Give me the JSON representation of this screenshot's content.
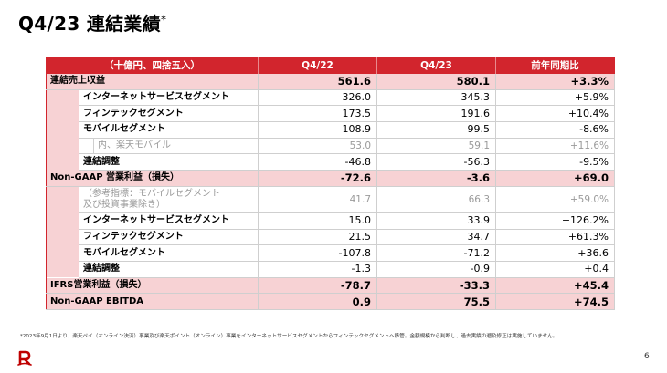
{
  "title": {
    "text": "Q4/23 連結業績",
    "mark": "*"
  },
  "table": {
    "headers": [
      "（十億円、四捨五入）",
      "Q4/22",
      "Q4/23",
      "前年同期比"
    ],
    "rows": [
      {
        "label": "連結売上収益",
        "q422": "561.6",
        "q423": "580.1",
        "yoy": "+3.3%",
        "kind": "major"
      },
      {
        "label": "インターネットサービスセグメント",
        "q422": "326.0",
        "q423": "345.3",
        "yoy": "+5.9%",
        "kind": "sub"
      },
      {
        "label": "フィンテックセグメント",
        "q422": "173.5",
        "q423": "191.6",
        "yoy": "+10.4%",
        "kind": "sub"
      },
      {
        "label": "モバイルセグメント",
        "q422": "108.9",
        "q423": "99.5",
        "yoy": "-8.6%",
        "kind": "sub"
      },
      {
        "label": "内、楽天モバイル",
        "q422": "53.0",
        "q423": "59.1",
        "yoy": "+11.6%",
        "kind": "gray2"
      },
      {
        "label": "連結調整",
        "q422": "-46.8",
        "q423": "-56.3",
        "yoy": "-9.5%",
        "kind": "sub"
      },
      {
        "label": "Non-GAAP 営業利益（損失）",
        "q422": "-72.6",
        "q423": "-3.6",
        "yoy": "+69.0",
        "kind": "major"
      },
      {
        "label": "（参考指標：モバイルセグメント\n及び投資事業除き）",
        "q422": "41.7",
        "q423": "66.3",
        "yoy": "+59.0%",
        "kind": "gray"
      },
      {
        "label": "インターネットサービスセグメント",
        "q422": "15.0",
        "q423": "33.9",
        "yoy": "+126.2%",
        "kind": "sub"
      },
      {
        "label": "フィンテックセグメント",
        "q422": "21.5",
        "q423": "34.7",
        "yoy": "+61.3%",
        "kind": "sub"
      },
      {
        "label": "モバイルセグメント",
        "q422": "-107.8",
        "q423": "-71.2",
        "yoy": "+36.6",
        "kind": "sub"
      },
      {
        "label": "連結調整",
        "q422": "-1.3",
        "q423": "-0.9",
        "yoy": "+0.4",
        "kind": "sub"
      },
      {
        "label": "IFRS営業利益（損失）",
        "q422": "-78.7",
        "q423": "-33.3",
        "yoy": "+45.4",
        "kind": "major"
      },
      {
        "label": "Non-GAAP EBITDA",
        "q422": "0.9",
        "q423": "75.5",
        "yoy": "+74.5",
        "kind": "major"
      }
    ]
  },
  "footnote": "*2023年9月1日より、楽天ペイ（オンライン決済）事業及び楽天ポイント（オンライン）事業をインターネットサービスセグメントからフィンテックセグメントへ移管。金額規模から判断し、過去実績の遡及修正は実施していません。",
  "page_number": "6",
  "colors": {
    "accent": "#d2252d",
    "highlight": "#f7d2d4",
    "muted": "#9a9a9a"
  },
  "logo_icon": "rakuten-r-logo-icon"
}
